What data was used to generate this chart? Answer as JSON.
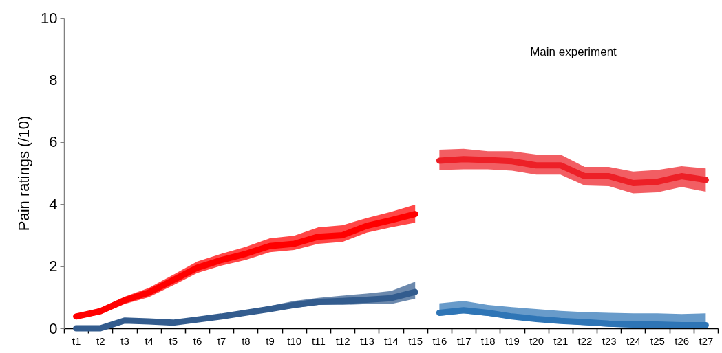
{
  "chart_data": {
    "type": "line",
    "ylabel": "Pain ratings (/10)",
    "categories": [
      "t1",
      "t2",
      "t3",
      "t4",
      "t5",
      "t6",
      "t7",
      "t8",
      "t9",
      "t10",
      "t11",
      "t12",
      "t13",
      "t14",
      "t15",
      "t16",
      "t17",
      "t18",
      "t19",
      "t20",
      "t21",
      "t22",
      "t23",
      "t24",
      "t25",
      "t26",
      "t27"
    ],
    "series": [
      {
        "color": "#ff0000",
        "values": [
          0.38,
          0.55,
          0.9,
          1.15,
          1.55,
          1.95,
          2.2,
          2.4,
          2.65,
          2.72,
          2.95,
          3.0,
          3.3,
          3.48,
          3.68,
          null,
          null,
          null,
          null,
          null,
          null,
          null,
          null,
          null,
          null,
          null,
          null
        ],
        "lower": [
          0.3,
          0.45,
          0.78,
          1.0,
          1.38,
          1.78,
          2.02,
          2.2,
          2.45,
          2.52,
          2.72,
          2.78,
          3.08,
          3.25,
          3.4,
          null,
          null,
          null,
          null,
          null,
          null,
          null,
          null,
          null,
          null,
          null,
          null
        ],
        "upper": [
          0.45,
          0.65,
          1.02,
          1.3,
          1.72,
          2.15,
          2.4,
          2.62,
          2.9,
          2.98,
          3.25,
          3.32,
          3.55,
          3.75,
          3.98,
          null,
          null,
          null,
          null,
          null,
          null,
          null,
          null,
          null,
          null,
          null,
          null
        ]
      },
      {
        "color": "#ed2027",
        "values": [
          null,
          null,
          null,
          null,
          null,
          null,
          null,
          null,
          null,
          null,
          null,
          null,
          null,
          null,
          null,
          5.4,
          5.45,
          5.42,
          5.38,
          5.25,
          5.25,
          4.9,
          4.9,
          4.68,
          4.72,
          4.9,
          4.78
        ],
        "lower": [
          null,
          null,
          null,
          null,
          null,
          null,
          null,
          null,
          null,
          null,
          null,
          null,
          null,
          null,
          null,
          5.1,
          5.12,
          5.12,
          5.08,
          4.95,
          4.95,
          4.6,
          4.58,
          4.35,
          4.38,
          4.55,
          4.4
        ],
        "upper": [
          null,
          null,
          null,
          null,
          null,
          null,
          null,
          null,
          null,
          null,
          null,
          null,
          null,
          null,
          null,
          5.75,
          5.78,
          5.7,
          5.7,
          5.6,
          5.6,
          5.2,
          5.2,
          5.05,
          5.1,
          5.22,
          5.15
        ]
      },
      {
        "color": "#335c8e",
        "values": [
          0,
          0,
          0.25,
          0.22,
          0.18,
          0.28,
          0.38,
          0.5,
          0.62,
          0.75,
          0.85,
          0.88,
          0.92,
          0.97,
          1.17,
          null,
          null,
          null,
          null,
          null,
          null,
          null,
          null,
          null,
          null,
          null,
          null
        ],
        "lower": [
          0,
          0,
          0.22,
          0.2,
          0.15,
          0.24,
          0.34,
          0.45,
          0.55,
          0.65,
          0.75,
          0.75,
          0.78,
          0.78,
          0.95,
          null,
          null,
          null,
          null,
          null,
          null,
          null,
          null,
          null,
          null,
          null,
          null
        ],
        "upper": [
          0,
          0,
          0.28,
          0.25,
          0.2,
          0.34,
          0.44,
          0.56,
          0.72,
          0.88,
          0.98,
          1.05,
          1.12,
          1.2,
          1.5,
          null,
          null,
          null,
          null,
          null,
          null,
          null,
          null,
          null,
          null,
          null,
          null
        ]
      },
      {
        "color": "#2e75b6",
        "values": [
          null,
          null,
          null,
          null,
          null,
          null,
          null,
          null,
          null,
          null,
          null,
          null,
          null,
          null,
          null,
          0.5,
          0.58,
          0.5,
          0.38,
          0.3,
          0.24,
          0.2,
          0.15,
          0.12,
          0.12,
          0.1,
          0.1
        ],
        "lower": [
          null,
          null,
          null,
          null,
          null,
          null,
          null,
          null,
          null,
          null,
          null,
          null,
          null,
          null,
          null,
          0.4,
          0.48,
          0.4,
          0.3,
          0.22,
          0.16,
          0.1,
          0.05,
          0.02,
          0.02,
          0,
          0
        ],
        "upper": [
          null,
          null,
          null,
          null,
          null,
          null,
          null,
          null,
          null,
          null,
          null,
          null,
          null,
          null,
          null,
          0.8,
          0.88,
          0.75,
          0.68,
          0.62,
          0.56,
          0.52,
          0.5,
          0.48,
          0.48,
          0.46,
          0.48
        ]
      }
    ],
    "ylim": [
      0,
      10
    ],
    "yticks": [
      0,
      2,
      4,
      6,
      8,
      10
    ],
    "annotations": [
      "Main experiment"
    ]
  }
}
